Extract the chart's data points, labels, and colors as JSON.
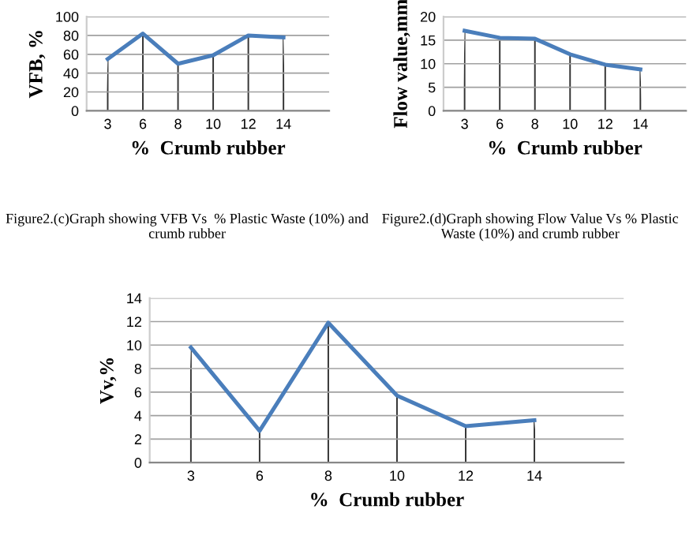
{
  "chart_data": [
    {
      "type": "line",
      "categories": [
        "3",
        "6",
        "8",
        "10",
        "12",
        "14"
      ],
      "values": [
        55,
        82,
        50,
        59,
        80,
        78
      ],
      "color": "#4a7ebb",
      "ylim": [
        0,
        100
      ],
      "yticks": [
        0,
        20,
        40,
        60,
        80,
        100
      ],
      "grid": true,
      "xlabel": "%  Crumb rubber",
      "ylabel": "VFB, %",
      "annotations": [
        "Figure2.(c)Graph showing VFB Vs  % Plastic Waste (10%) and crumb rubber"
      ]
    },
    {
      "type": "line",
      "categories": [
        "3",
        "6",
        "8",
        "10",
        "12",
        "14"
      ],
      "values": [
        17,
        15.5,
        15.3,
        12,
        9.8,
        8.8
      ],
      "color": "#4a7ebb",
      "ylim": [
        0,
        20
      ],
      "yticks": [
        0,
        5,
        10,
        15,
        20
      ],
      "grid": true,
      "xlabel": "%  Crumb rubber",
      "ylabel": "Flow value,mm",
      "annotations": [
        "Figure2.(d)Graph showing Flow Value Vs % Plastic Waste (10%) and crumb rubber"
      ]
    },
    {
      "type": "line",
      "categories": [
        "3",
        "6",
        "8",
        "10",
        "12",
        "14"
      ],
      "values": [
        9.8,
        2.7,
        11.9,
        5.7,
        3.1,
        3.6
      ],
      "color": "#4a7ebb",
      "ylim": [
        0,
        14
      ],
      "yticks": [
        0,
        2,
        4,
        6,
        8,
        10,
        12,
        14
      ],
      "grid": true,
      "xlabel": "%  Crumb rubber",
      "ylabel": "Vv,%"
    }
  ]
}
